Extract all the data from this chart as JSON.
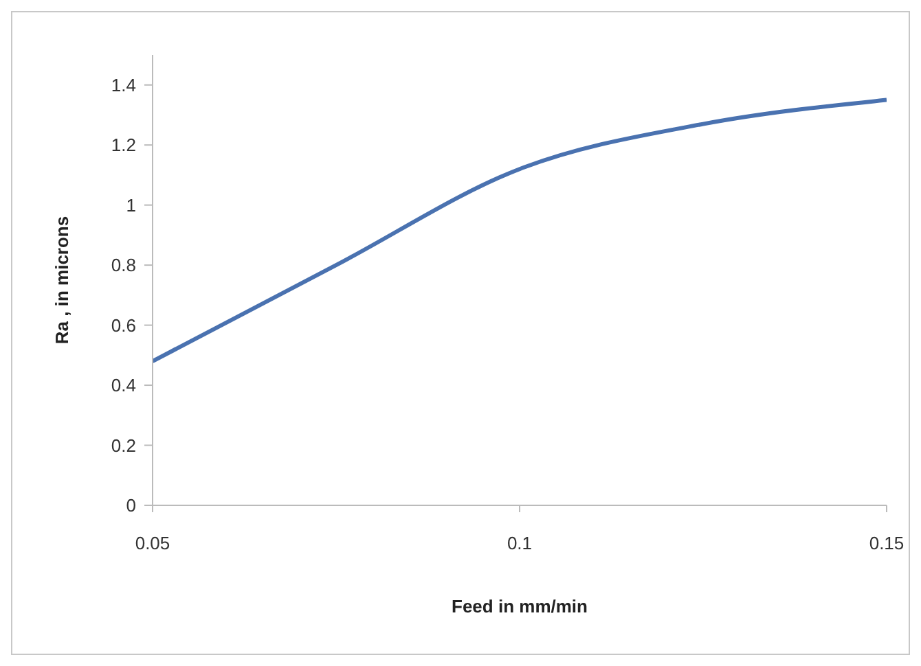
{
  "chart_data": {
    "type": "line",
    "xlabel": "Feed in mm/min",
    "ylabel": "Ra , in microns",
    "x": [
      0.05,
      0.075,
      0.1,
      0.125,
      0.15
    ],
    "series": [
      {
        "color": "#4a72b0",
        "values": [
          0.48,
          0.8,
          1.12,
          1.27,
          1.35
        ]
      }
    ],
    "xlim": [
      0.05,
      0.15
    ],
    "xticks": [
      0.05,
      0.1,
      0.15
    ],
    "ylim": [
      0,
      1.5
    ],
    "yticks": [
      0,
      0.2,
      0.4,
      0.6,
      0.8,
      1,
      1.2,
      1.4
    ],
    "grid": false,
    "legend": false,
    "marker": "none",
    "line_style": "solid"
  }
}
